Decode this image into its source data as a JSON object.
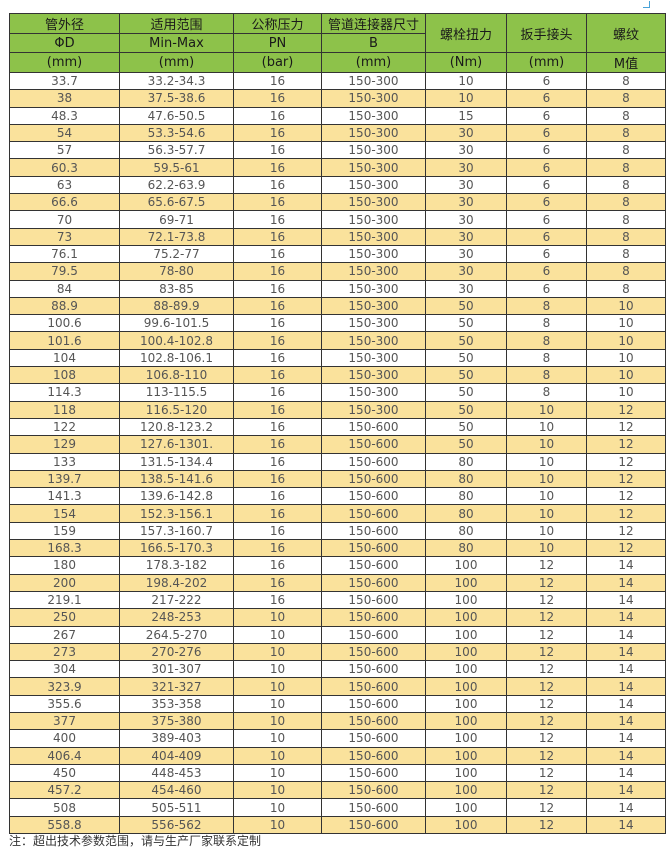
{
  "header": {
    "row1": [
      "管外径",
      "适用范围",
      "公称压力",
      "管道连接器尺寸",
      "螺栓扭力",
      "扳手接头",
      "螺纹"
    ],
    "row2": [
      "ΦD",
      "Min-Max",
      "PN",
      "B"
    ],
    "row3": [
      "(mm)",
      "(mm)",
      "(bar)",
      "(mm)",
      "(Nm)",
      "(mm)",
      "M值"
    ]
  },
  "rows": [
    [
      "33.7",
      "33.2-34.3",
      "16",
      "150-300",
      "10",
      "6",
      "8"
    ],
    [
      "38",
      "37.5-38.6",
      "16",
      "150-300",
      "10",
      "6",
      "8"
    ],
    [
      "48.3",
      "47.6-50.5",
      "16",
      "150-300",
      "15",
      "6",
      "8"
    ],
    [
      "54",
      "53.3-54.6",
      "16",
      "150-300",
      "30",
      "6",
      "8"
    ],
    [
      "57",
      "56.3-57.7",
      "16",
      "150-300",
      "30",
      "6",
      "8"
    ],
    [
      "60.3",
      "59.5-61",
      "16",
      "150-300",
      "30",
      "6",
      "8"
    ],
    [
      "63",
      "62.2-63.9",
      "16",
      "150-300",
      "30",
      "6",
      "8"
    ],
    [
      "66.6",
      "65.6-67.5",
      "16",
      "150-300",
      "30",
      "6",
      "8"
    ],
    [
      "70",
      "69-71",
      "16",
      "150-300",
      "30",
      "6",
      "8"
    ],
    [
      "73",
      "72.1-73.8",
      "16",
      "150-300",
      "30",
      "6",
      "8"
    ],
    [
      "76.1",
      "75.2-77",
      "16",
      "150-300",
      "30",
      "6",
      "8"
    ],
    [
      "79.5",
      "78-80",
      "16",
      "150-300",
      "30",
      "6",
      "8"
    ],
    [
      "84",
      "83-85",
      "16",
      "150-300",
      "30",
      "6",
      "8"
    ],
    [
      "88.9",
      "88-89.9",
      "16",
      "150-300",
      "50",
      "8",
      "10"
    ],
    [
      "100.6",
      "99.6-101.5",
      "16",
      "150-300",
      "50",
      "8",
      "10"
    ],
    [
      "101.6",
      "100.4-102.8",
      "16",
      "150-300",
      "50",
      "8",
      "10"
    ],
    [
      "104",
      "102.8-106.1",
      "16",
      "150-300",
      "50",
      "8",
      "10"
    ],
    [
      "108",
      "106.8-110",
      "16",
      "150-300",
      "50",
      "8",
      "10"
    ],
    [
      "114.3",
      "113-115.5",
      "16",
      "150-300",
      "50",
      "8",
      "10"
    ],
    [
      "118",
      "116.5-120",
      "16",
      "150-300",
      "50",
      "10",
      "12"
    ],
    [
      "122",
      "120.8-123.2",
      "16",
      "150-600",
      "50",
      "10",
      "12"
    ],
    [
      "129",
      "127.6-1301.",
      "16",
      "150-600",
      "50",
      "10",
      "12"
    ],
    [
      "133",
      "131.5-134.4",
      "16",
      "150-600",
      "80",
      "10",
      "12"
    ],
    [
      "139.7",
      "138.5-141.6",
      "16",
      "150-600",
      "80",
      "10",
      "12"
    ],
    [
      "141.3",
      "139.6-142.8",
      "16",
      "150-600",
      "80",
      "10",
      "12"
    ],
    [
      "154",
      "152.3-156.1",
      "16",
      "150-600",
      "80",
      "10",
      "12"
    ],
    [
      "159",
      "157.3-160.7",
      "16",
      "150-600",
      "80",
      "10",
      "12"
    ],
    [
      "168.3",
      "166.5-170.3",
      "16",
      "150-600",
      "80",
      "10",
      "12"
    ],
    [
      "180",
      "178.3-182",
      "16",
      "150-600",
      "100",
      "12",
      "14"
    ],
    [
      "200",
      "198.4-202",
      "16",
      "150-600",
      "100",
      "12",
      "14"
    ],
    [
      "219.1",
      "217-222",
      "16",
      "150-600",
      "100",
      "12",
      "14"
    ],
    [
      "250",
      "248-253",
      "10",
      "150-600",
      "100",
      "12",
      "14"
    ],
    [
      "267",
      "264.5-270",
      "10",
      "150-600",
      "100",
      "12",
      "14"
    ],
    [
      "273",
      "270-276",
      "10",
      "150-600",
      "100",
      "12",
      "14"
    ],
    [
      "304",
      "301-307",
      "10",
      "150-600",
      "100",
      "12",
      "14"
    ],
    [
      "323.9",
      "321-327",
      "10",
      "150-600",
      "100",
      "12",
      "14"
    ],
    [
      "355.6",
      "353-358",
      "10",
      "150-600",
      "100",
      "12",
      "14"
    ],
    [
      "377",
      "375-380",
      "10",
      "150-600",
      "100",
      "12",
      "14"
    ],
    [
      "400",
      "389-403",
      "10",
      "150-600",
      "100",
      "12",
      "14"
    ],
    [
      "406.4",
      "404-409",
      "10",
      "150-600",
      "100",
      "12",
      "14"
    ],
    [
      "450",
      "448-453",
      "10",
      "150-600",
      "100",
      "12",
      "14"
    ],
    [
      "457.2",
      "454-460",
      "10",
      "150-600",
      "100",
      "12",
      "14"
    ],
    [
      "508",
      "505-511",
      "10",
      "150-600",
      "100",
      "12",
      "14"
    ],
    [
      "558.8",
      "556-562",
      "10",
      "150-600",
      "100",
      "12",
      "14"
    ]
  ],
  "note": "注：超出技术参数范围，请与生产厂家联系定制",
  "colors": {
    "header_bg": "#8dc24a",
    "alt_row_bg": "#fae29c",
    "border": "#333333"
  }
}
